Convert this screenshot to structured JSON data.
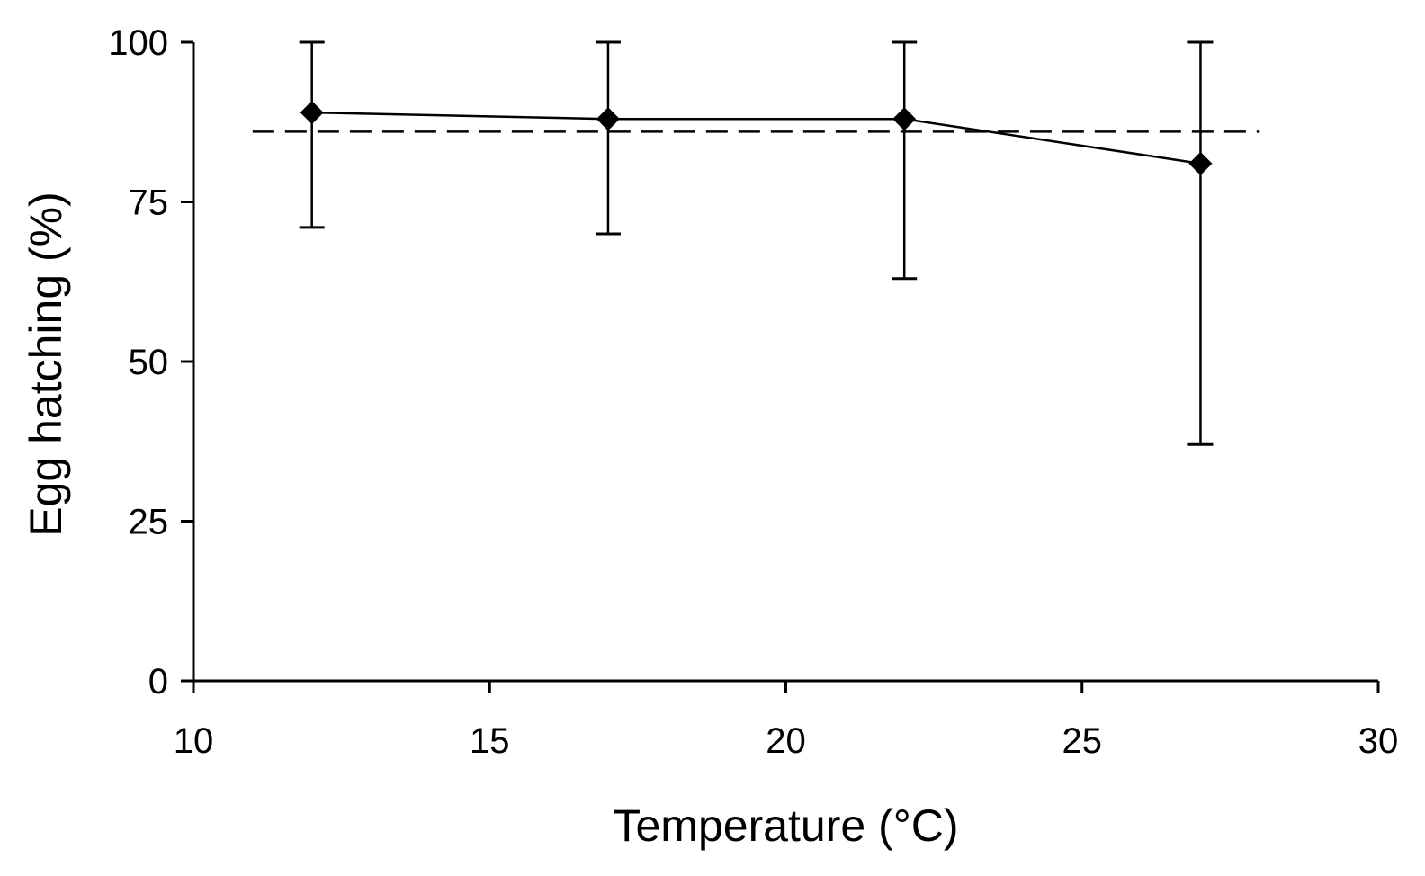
{
  "chart_data": {
    "type": "line",
    "title": "",
    "xlabel": "Temperature (°C)",
    "ylabel": "Egg hatching (%)",
    "xlim": [
      10,
      30
    ],
    "ylim": [
      0,
      100
    ],
    "xticks": [
      10,
      15,
      20,
      25,
      30
    ],
    "yticks": [
      0,
      25,
      50,
      75,
      100
    ],
    "grid": false,
    "series": [
      {
        "name": "Egg hatching",
        "marker": "diamond",
        "x": [
          12,
          17,
          22,
          27
        ],
        "y": [
          89,
          88,
          88,
          81
        ],
        "error_low": [
          71,
          70,
          63,
          37
        ],
        "error_high": [
          100,
          100,
          100,
          100
        ]
      }
    ],
    "reference_line": {
      "style": "dashed",
      "y": 86,
      "x_start": 11,
      "x_end": 28
    },
    "colors": {
      "line": "#000000",
      "marker": "#000000",
      "background": "#ffffff"
    }
  }
}
